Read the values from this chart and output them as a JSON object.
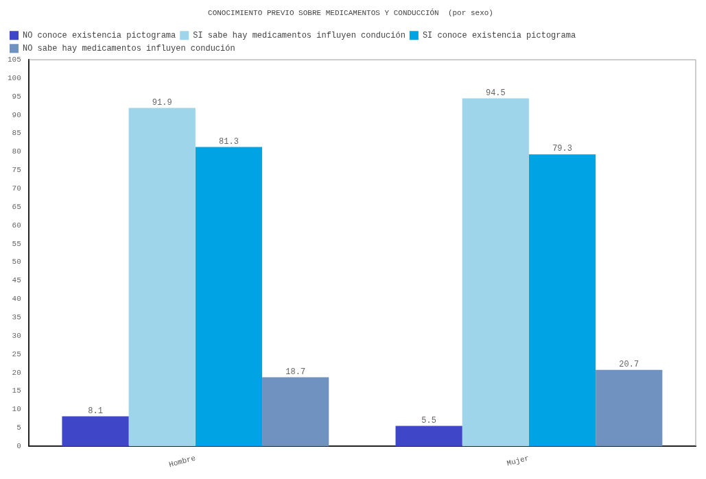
{
  "chart_data": {
    "type": "bar",
    "title": "CONOCIMIENTO PREVIO SOBRE MEDICAMENTOS Y CONDUCCIÓN  (por sexo)",
    "categories": [
      "Hombre",
      "Mujer"
    ],
    "series": [
      {
        "name": "NO conoce existencia pictograma",
        "color": "#4046c8",
        "values": [
          8.1,
          5.5
        ]
      },
      {
        "name": "SI sabe hay medicamentos influyen condución",
        "color": "#9fd5ea",
        "values": [
          91.9,
          94.5
        ]
      },
      {
        "name": "SI conoce existencia pictograma",
        "color": "#00a4e4",
        "values": [
          81.3,
          79.3
        ]
      },
      {
        "name": "NO sabe hay medicamentos influyen condución",
        "color": "#7092c0",
        "values": [
          18.7,
          20.7
        ]
      }
    ],
    "ylim": [
      0,
      105
    ],
    "yticks": [
      0,
      5,
      10,
      15,
      20,
      25,
      30,
      35,
      40,
      45,
      50,
      55,
      60,
      65,
      70,
      75,
      80,
      85,
      90,
      95,
      100,
      105
    ],
    "grid": false,
    "legend": "top left",
    "data_labels": true
  }
}
